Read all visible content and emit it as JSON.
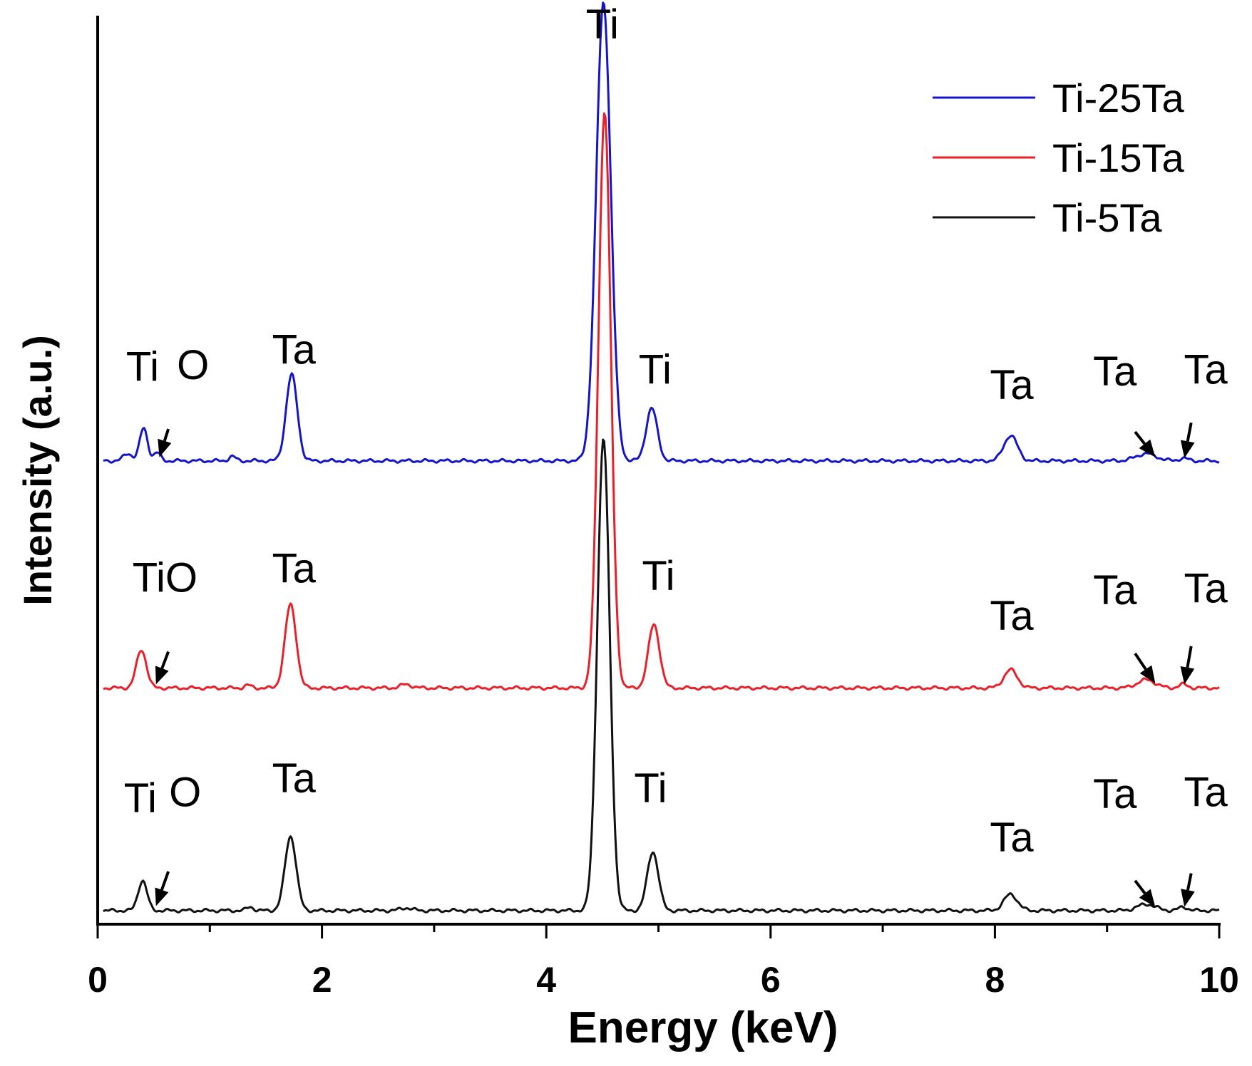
{
  "chart_data": {
    "type": "line",
    "title": "",
    "xlabel": "Energy (keV)",
    "ylabel": "Intensity (a.u.)",
    "xlim": [
      0,
      10
    ],
    "ylim": [
      0,
      100
    ],
    "xticks": [
      0,
      2,
      4,
      6,
      8,
      10
    ],
    "xtick_labels": [
      "0",
      "2",
      "4",
      "6",
      "8",
      "10"
    ],
    "y_ticks_shown": false,
    "grid": false,
    "legend_position": "top-right",
    "colors": {
      "Ti-25Ta": "#1414c8",
      "Ti-15Ta": "#e8202a",
      "Ti-5Ta": "#111111"
    },
    "series": [
      {
        "name": "Ti-25Ta",
        "baseline": 51.0,
        "peaks": [
          {
            "x": 0.27,
            "h": 0.8,
            "w": 0.04
          },
          {
            "x": 0.41,
            "h": 3.6,
            "w": 0.035
          },
          {
            "x": 0.53,
            "h": 0.9,
            "w": 0.03
          },
          {
            "x": 1.2,
            "h": 0.5,
            "w": 0.03
          },
          {
            "x": 1.73,
            "h": 9.5,
            "w": 0.05
          },
          {
            "x": 4.51,
            "h": 50.5,
            "w": 0.065
          },
          {
            "x": 4.94,
            "h": 5.8,
            "w": 0.05
          },
          {
            "x": 8.14,
            "h": 2.8,
            "w": 0.06
          },
          {
            "x": 9.35,
            "h": 0.8,
            "w": 0.09
          },
          {
            "x": 9.68,
            "h": 0.3,
            "w": 0.04
          }
        ]
      },
      {
        "name": "Ti-15Ta",
        "baseline": 26.0,
        "peaks": [
          {
            "x": 0.39,
            "h": 4.2,
            "w": 0.045
          },
          {
            "x": 1.34,
            "h": 0.3,
            "w": 0.03
          },
          {
            "x": 1.72,
            "h": 9.2,
            "w": 0.05
          },
          {
            "x": 2.75,
            "h": 0.4,
            "w": 0.05
          },
          {
            "x": 4.52,
            "h": 63.5,
            "w": 0.055
          },
          {
            "x": 4.96,
            "h": 7.0,
            "w": 0.05
          },
          {
            "x": 8.14,
            "h": 2.0,
            "w": 0.06
          },
          {
            "x": 9.35,
            "h": 0.9,
            "w": 0.08
          },
          {
            "x": 9.68,
            "h": 0.4,
            "w": 0.04
          }
        ]
      },
      {
        "name": "Ti-5Ta",
        "baseline": 1.5,
        "peaks": [
          {
            "x": 0.4,
            "h": 3.3,
            "w": 0.04
          },
          {
            "x": 1.36,
            "h": 0.4,
            "w": 0.03
          },
          {
            "x": 1.72,
            "h": 8.2,
            "w": 0.05
          },
          {
            "x": 2.75,
            "h": 0.3,
            "w": 0.05
          },
          {
            "x": 4.51,
            "h": 52.0,
            "w": 0.055
          },
          {
            "x": 4.95,
            "h": 6.5,
            "w": 0.05
          },
          {
            "x": 8.14,
            "h": 1.8,
            "w": 0.06
          },
          {
            "x": 9.35,
            "h": 0.7,
            "w": 0.08
          },
          {
            "x": 9.68,
            "h": 0.4,
            "w": 0.04
          }
        ]
      }
    ],
    "annotations": [
      {
        "text": "Ti",
        "x": 4.5,
        "y": 97.5
      },
      {
        "text": "Ti",
        "x": 0.4,
        "y": 59.8
      },
      {
        "text": "O",
        "x": 0.85,
        "y": 60.0
      },
      {
        "text": "Ta",
        "x": 1.75,
        "y": 61.7
      },
      {
        "text": "Ti",
        "x": 4.97,
        "y": 59.5
      },
      {
        "text": "Ta",
        "x": 8.15,
        "y": 57.8
      },
      {
        "text": "Ta",
        "x": 9.07,
        "y": 59.3
      },
      {
        "text": "Ta",
        "x": 9.88,
        "y": 59.5
      },
      {
        "text": "TiO",
        "x": 0.6,
        "y": 36.6
      },
      {
        "text": "Ta",
        "x": 1.75,
        "y": 37.6
      },
      {
        "text": "Ti",
        "x": 5.0,
        "y": 36.8
      },
      {
        "text": "Ta",
        "x": 8.15,
        "y": 32.4
      },
      {
        "text": "Ta",
        "x": 9.07,
        "y": 35.2
      },
      {
        "text": "Ta",
        "x": 9.88,
        "y": 35.4
      },
      {
        "text": "Ti",
        "x": 0.38,
        "y": 12.3
      },
      {
        "text": "O",
        "x": 0.78,
        "y": 13.0
      },
      {
        "text": "Ta",
        "x": 1.75,
        "y": 14.5
      },
      {
        "text": "Ti",
        "x": 4.93,
        "y": 13.4
      },
      {
        "text": "Ta",
        "x": 8.15,
        "y": 8.0
      },
      {
        "text": "Ta",
        "x": 9.07,
        "y": 12.8
      },
      {
        "text": "Ta",
        "x": 9.88,
        "y": 13.0
      }
    ],
    "arrows": [
      {
        "from": [
          0.63,
          54.5
        ],
        "to": [
          0.55,
          51.4
        ]
      },
      {
        "from": [
          9.25,
          54.2
        ],
        "to": [
          9.43,
          51.4
        ]
      },
      {
        "from": [
          9.75,
          55.2
        ],
        "to": [
          9.69,
          51.3
        ]
      },
      {
        "from": [
          0.63,
          30.0
        ],
        "to": [
          0.52,
          26.4
        ]
      },
      {
        "from": [
          9.25,
          29.8
        ],
        "to": [
          9.43,
          26.5
        ]
      },
      {
        "from": [
          9.75,
          30.6
        ],
        "to": [
          9.69,
          26.4
        ]
      },
      {
        "from": [
          0.63,
          5.8
        ],
        "to": [
          0.52,
          2.0
        ]
      },
      {
        "from": [
          9.25,
          4.8
        ],
        "to": [
          9.43,
          1.9
        ]
      },
      {
        "from": [
          9.75,
          5.6
        ],
        "to": [
          9.69,
          1.9
        ]
      }
    ],
    "legend": [
      {
        "label": "Ti-25Ta",
        "color": "#1414c8"
      },
      {
        "label": "Ti-15Ta",
        "color": "#e8202a"
      },
      {
        "label": "Ti-5Ta",
        "color": "#111111"
      }
    ]
  }
}
